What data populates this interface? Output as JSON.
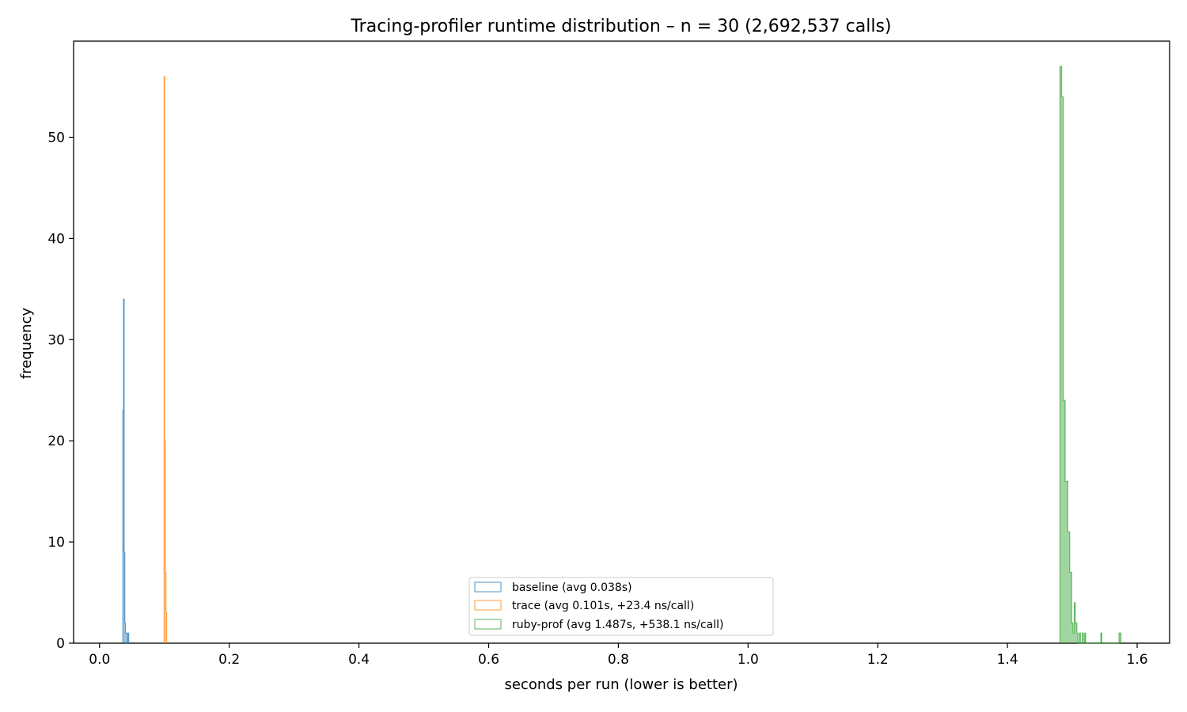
{
  "chart_data": {
    "type": "histogram",
    "title": "Tracing-profiler runtime distribution – n = 30 (2,692,537 calls)",
    "xlabel": "seconds per run  (lower is better)",
    "ylabel": "frequency",
    "xlim": [
      -0.04,
      1.65
    ],
    "ylim": [
      0,
      59.5
    ],
    "xticks": [
      0.0,
      0.2,
      0.4,
      0.6,
      0.8,
      1.0,
      1.2,
      1.4,
      1.6
    ],
    "xtick_labels": [
      "0.0",
      "0.2",
      "0.4",
      "0.6",
      "0.8",
      "1.0",
      "1.2",
      "1.4",
      "1.6"
    ],
    "yticks": [
      0,
      10,
      20,
      30,
      40,
      50
    ],
    "ytick_labels": [
      "0",
      "10",
      "20",
      "30",
      "40",
      "50"
    ],
    "grid": false,
    "legend_position": "lower-center",
    "series": [
      {
        "name": "baseline  (avg 0.038s)",
        "color": "#1f77b4",
        "bins": [
          {
            "x0": 0.036,
            "x1": 0.037,
            "count": 23
          },
          {
            "x0": 0.037,
            "x1": 0.038,
            "count": 34
          },
          {
            "x0": 0.038,
            "x1": 0.039,
            "count": 9
          },
          {
            "x0": 0.039,
            "x1": 0.04,
            "count": 2
          },
          {
            "x0": 0.04,
            "x1": 0.041,
            "count": 1
          },
          {
            "x0": 0.041,
            "x1": 0.042,
            "count": 1
          },
          {
            "x0": 0.042,
            "x1": 0.043,
            "count": 1
          },
          {
            "x0": 0.043,
            "x1": 0.044,
            "count": 0
          },
          {
            "x0": 0.044,
            "x1": 0.045,
            "count": 1
          }
        ]
      },
      {
        "name": "trace  (avg 0.101s, +23.4 ns/call)",
        "color": "#ff7f0e",
        "bins": [
          {
            "x0": 0.0995,
            "x1": 0.1005,
            "count": 56
          },
          {
            "x0": 0.1005,
            "x1": 0.1015,
            "count": 20
          },
          {
            "x0": 0.1015,
            "x1": 0.1025,
            "count": 7
          },
          {
            "x0": 0.1025,
            "x1": 0.1035,
            "count": 3
          }
        ]
      },
      {
        "name": "ruby-prof  (avg 1.487s, +538.1 ns/call)",
        "color": "#2ca02c",
        "bins": [
          {
            "x0": 1.481,
            "x1": 1.4835,
            "count": 57
          },
          {
            "x0": 1.4835,
            "x1": 1.486,
            "count": 54
          },
          {
            "x0": 1.486,
            "x1": 1.489,
            "count": 24
          },
          {
            "x0": 1.489,
            "x1": 1.493,
            "count": 16
          },
          {
            "x0": 1.493,
            "x1": 1.496,
            "count": 11
          },
          {
            "x0": 1.496,
            "x1": 1.499,
            "count": 7
          },
          {
            "x0": 1.499,
            "x1": 1.501,
            "count": 2
          },
          {
            "x0": 1.501,
            "x1": 1.503,
            "count": 1
          },
          {
            "x0": 1.503,
            "x1": 1.5045,
            "count": 4
          },
          {
            "x0": 1.5045,
            "x1": 1.507,
            "count": 2
          },
          {
            "x0": 1.507,
            "x1": 1.5085,
            "count": 1
          },
          {
            "x0": 1.5085,
            "x1": 1.511,
            "count": 0
          },
          {
            "x0": 1.511,
            "x1": 1.5125,
            "count": 1
          },
          {
            "x0": 1.5125,
            "x1": 1.5155,
            "count": 0
          },
          {
            "x0": 1.5155,
            "x1": 1.517,
            "count": 1
          },
          {
            "x0": 1.517,
            "x1": 1.519,
            "count": 0
          },
          {
            "x0": 1.519,
            "x1": 1.5205,
            "count": 1
          },
          {
            "x0": 1.5205,
            "x1": 1.544,
            "count": 0
          },
          {
            "x0": 1.544,
            "x1": 1.5455,
            "count": 1
          },
          {
            "x0": 1.5455,
            "x1": 1.572,
            "count": 0
          },
          {
            "x0": 1.572,
            "x1": 1.5735,
            "count": 1
          },
          {
            "x0": 1.5735,
            "x1": 1.575,
            "count": 1
          }
        ]
      }
    ]
  }
}
